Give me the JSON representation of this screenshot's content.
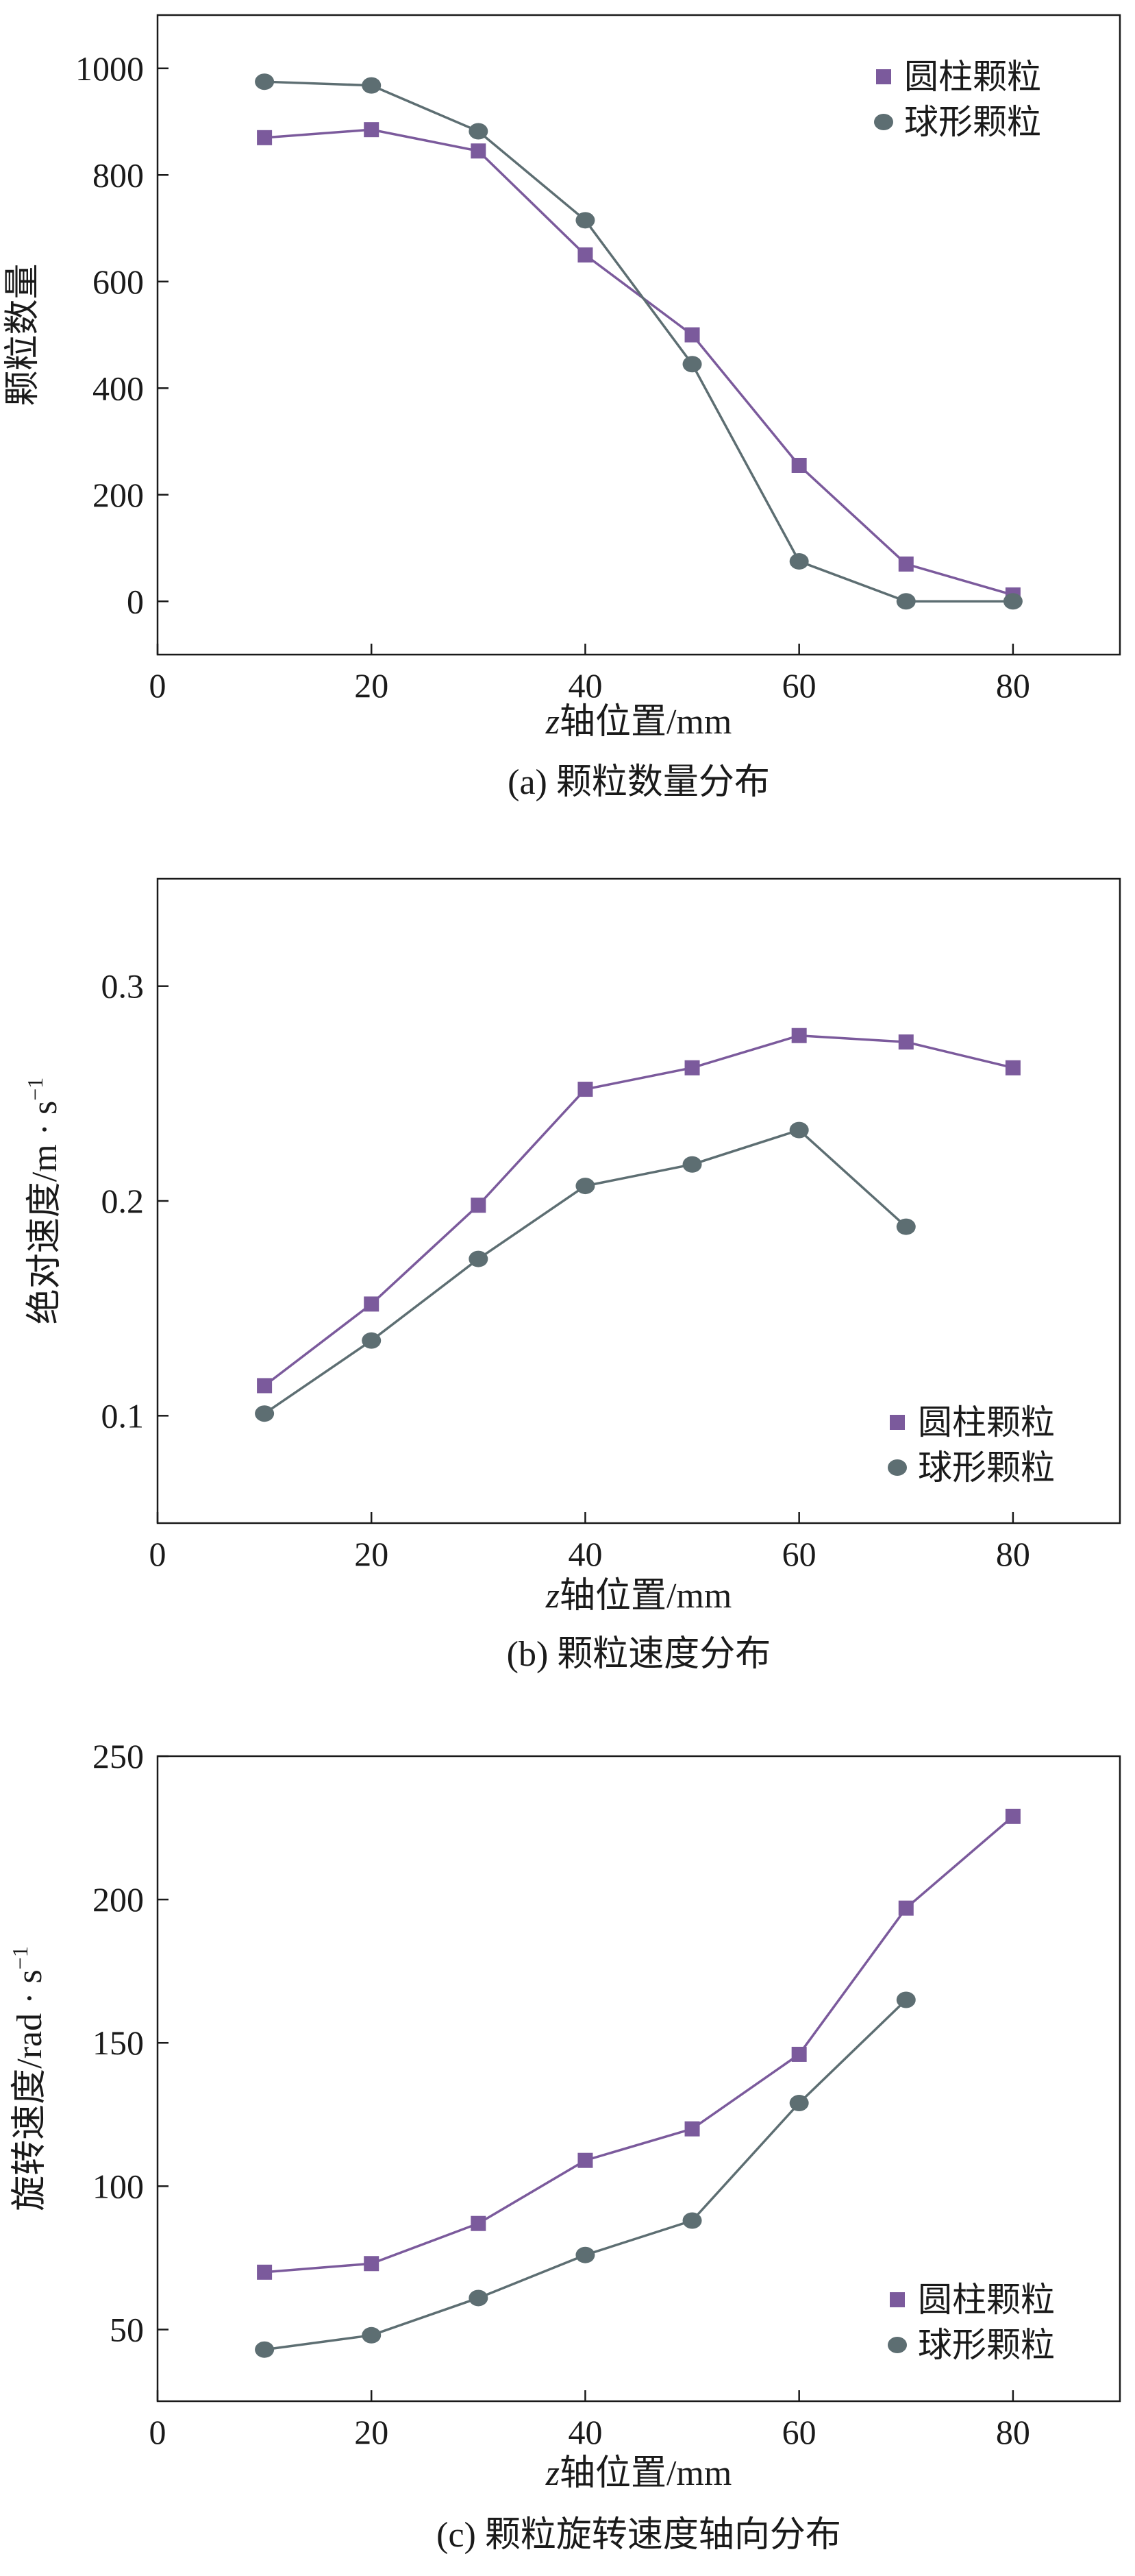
{
  "colors": {
    "cylinder": "#7b5a9c",
    "sphere": "#5d6e72",
    "axis": "#1a1a1a"
  },
  "chart_data": [
    {
      "type": "line",
      "caption": "(a) 颗粒数量分布",
      "xlabel_italic": "z",
      "xlabel_rest": "轴位置/mm",
      "ylabel": "颗粒数量",
      "xlim": [
        0,
        90
      ],
      "ylim": [
        -100,
        1100
      ],
      "xticks": [
        0,
        20,
        40,
        60,
        80
      ],
      "yticks": [
        0,
        200,
        400,
        600,
        800,
        1000
      ],
      "ytick_decimals": 0,
      "legend_position": "top-right",
      "grid": false,
      "series": [
        {
          "name": "圆柱颗粒",
          "marker": "square",
          "color_key": "cylinder",
          "x": [
            10,
            20,
            30,
            40,
            50,
            60,
            70,
            80
          ],
          "y": [
            870,
            885,
            845,
            650,
            500,
            255,
            70,
            12
          ]
        },
        {
          "name": "球形颗粒",
          "marker": "circle",
          "color_key": "sphere",
          "x": [
            10,
            20,
            30,
            40,
            50,
            60,
            70,
            80
          ],
          "y": [
            975,
            968,
            882,
            715,
            445,
            75,
            0,
            0
          ]
        }
      ]
    },
    {
      "type": "line",
      "caption": "(b) 颗粒速度分布",
      "xlabel_italic": "z",
      "xlabel_rest": "轴位置/mm",
      "ylabel": "绝对速度/m · s",
      "ylabel_sup": "−1",
      "xlim": [
        0,
        90
      ],
      "ylim": [
        0.05,
        0.35
      ],
      "xticks": [
        0,
        20,
        40,
        60,
        80
      ],
      "yticks": [
        0.1,
        0.2,
        0.3
      ],
      "ytick_decimals": 1,
      "legend_position": "bottom-right",
      "grid": false,
      "series": [
        {
          "name": "圆柱颗粒",
          "marker": "square",
          "color_key": "cylinder",
          "x": [
            10,
            20,
            30,
            40,
            50,
            60,
            70,
            80
          ],
          "y": [
            0.114,
            0.152,
            0.198,
            0.252,
            0.262,
            0.277,
            0.274,
            0.262
          ]
        },
        {
          "name": "球形颗粒",
          "marker": "circle",
          "color_key": "sphere",
          "x": [
            10,
            20,
            30,
            40,
            50,
            60,
            70
          ],
          "y": [
            0.101,
            0.135,
            0.173,
            0.207,
            0.217,
            0.233,
            0.188
          ]
        }
      ]
    },
    {
      "type": "line",
      "caption": "(c) 颗粒旋转速度轴向分布",
      "xlabel_italic": "z",
      "xlabel_rest": "轴位置/mm",
      "ylabel": "旋转速度/rad · s",
      "ylabel_sup": "−1",
      "xlim": [
        0,
        90
      ],
      "ylim": [
        25,
        250
      ],
      "xticks": [
        0,
        20,
        40,
        60,
        80
      ],
      "yticks": [
        50,
        100,
        150,
        200,
        250
      ],
      "ytick_decimals": 0,
      "legend_position": "bottom-right",
      "grid": false,
      "series": [
        {
          "name": "圆柱颗粒",
          "marker": "square",
          "color_key": "cylinder",
          "x": [
            10,
            20,
            30,
            40,
            50,
            60,
            70,
            80
          ],
          "y": [
            70,
            73,
            87,
            109,
            120,
            146,
            197,
            229
          ]
        },
        {
          "name": "球形颗粒",
          "marker": "circle",
          "color_key": "sphere",
          "x": [
            10,
            20,
            30,
            40,
            50,
            60,
            70
          ],
          "y": [
            43,
            48,
            61,
            76,
            88,
            129,
            165
          ]
        }
      ]
    }
  ]
}
